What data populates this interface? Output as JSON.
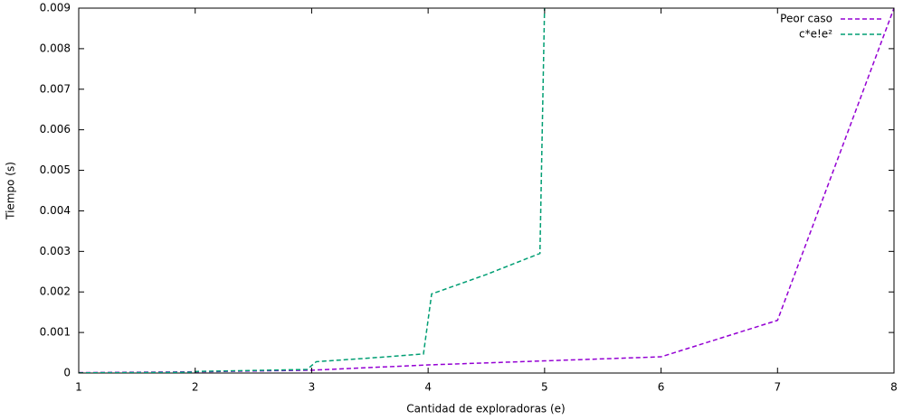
{
  "chart_data": {
    "type": "line",
    "xlabel": "Cantidad de exploradoras (e)",
    "ylabel": "Tiempo (s)",
    "xlim": [
      1,
      8
    ],
    "xticks": [
      1,
      2,
      3,
      4,
      5,
      6,
      7,
      8
    ],
    "ylim": [
      0,
      0.009
    ],
    "yticks": [
      0,
      0.001,
      0.002,
      0.003,
      0.004,
      0.005,
      0.006,
      0.007,
      0.008,
      0.009
    ],
    "legend": "top-right",
    "series": [
      {
        "name": "Peor caso",
        "color": "#9400d3",
        "dashed": true,
        "x": [
          1,
          2,
          3,
          4,
          5,
          6,
          7,
          8
        ],
        "values": [
          1e-05,
          3e-05,
          7e-05,
          0.0002,
          0.0003,
          0.0004,
          0.0013,
          0.009
        ]
      },
      {
        "name": "c*e!e²",
        "color": "#009e73",
        "dashed": true,
        "x": [
          1,
          1.5,
          1.96,
          2.03,
          2.5,
          2.96,
          3.04,
          3.5,
          3.96,
          4.03,
          4.5,
          4.96,
          5.04
        ],
        "values": [
          5e-06,
          1.1e-05,
          1.9e-05,
          4.1e-05,
          6.3e-05,
          8.8e-05,
          0.00028,
          0.00037,
          0.00047,
          0.00195,
          0.00243,
          0.00295,
          0.0152
        ]
      }
    ]
  }
}
